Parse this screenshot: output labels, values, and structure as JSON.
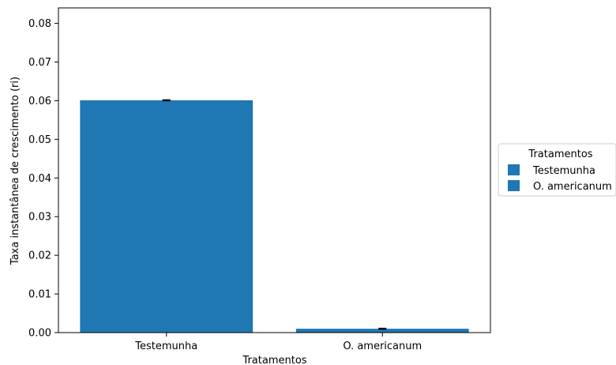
{
  "chart_data": {
    "type": "bar",
    "categories": [
      "Testemunha",
      "O. americanum"
    ],
    "values": [
      0.0601,
      0.001
    ],
    "errors": [
      0.0001,
      0.0001
    ],
    "title": "",
    "xlabel": "Tratamentos",
    "ylabel": "Taxa instantânea de crescimento (ri)",
    "ylim": [
      0,
      0.084
    ],
    "yticks": [
      0.0,
      0.01,
      0.02,
      0.03,
      0.04,
      0.05,
      0.06,
      0.07,
      0.08
    ],
    "ytick_labels": [
      "0.00",
      "0.01",
      "0.02",
      "0.03",
      "0.04",
      "0.05",
      "0.06",
      "0.07",
      "0.08"
    ],
    "bar_color": "#1f77b4",
    "grid": false,
    "legend": {
      "title": "Tratamentos",
      "placement": "center-right outside",
      "entries": [
        "Testemunha",
        "O. americanum"
      ]
    }
  }
}
